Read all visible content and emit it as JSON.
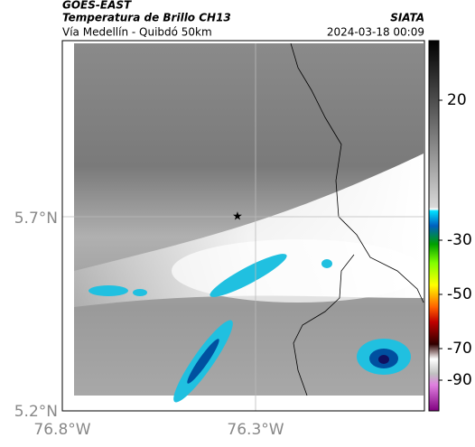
{
  "header": {
    "satellite": "GOES-EAST",
    "product": "Temperatura de Brillo CH13",
    "agency": "SIATA",
    "route": "Vía Medellín - Quibdó 50km",
    "datetime": "2024-03-18 00:09"
  },
  "map": {
    "lat_labels": [
      "5.7°N",
      "5.2°N"
    ],
    "lon_labels": [
      "76.8°W",
      "76.3°W"
    ]
  },
  "colorbar": {
    "ticks": [
      20,
      -30,
      -50,
      -70,
      -90
    ]
  }
}
